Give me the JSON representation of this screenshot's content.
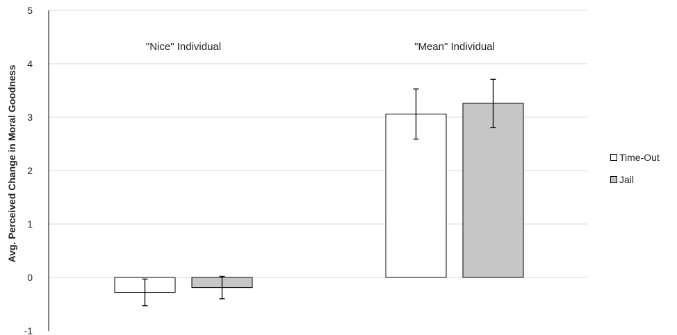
{
  "chart_data": {
    "type": "bar",
    "title": "",
    "xlabel": "",
    "ylabel": "Avg. Perceived Change in Moral Goodness",
    "ylim": [
      -1,
      5
    ],
    "yticks": [
      -1,
      0,
      1,
      2,
      3,
      4,
      5
    ],
    "grid": true,
    "legend_position": "right",
    "categories": [
      "\"Nice\" Individual",
      "\"Mean\" Individual"
    ],
    "series": [
      {
        "name": "Time-Out",
        "color": "#ffffff",
        "values": [
          -0.28,
          3.06
        ],
        "error": [
          0.25,
          0.47
        ]
      },
      {
        "name": "Jail",
        "color": "#c6c6c6",
        "values": [
          -0.19,
          3.26
        ],
        "error": [
          0.21,
          0.45
        ]
      }
    ]
  }
}
